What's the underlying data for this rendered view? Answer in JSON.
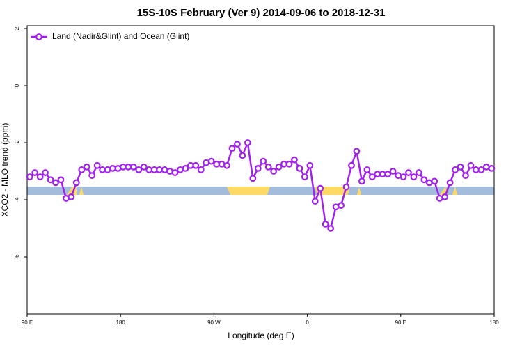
{
  "chart_data": {
    "type": "line",
    "title": "15S-10S February (Ver 9)   2014-09-06 to 2018-12-31",
    "x_label": "Longitude (deg E)",
    "y_label": "XCO2 - MLO trend (ppm)",
    "xlim": [
      90,
      540
    ],
    "xticks": [
      {
        "value": 90,
        "label": "90 E"
      },
      180,
      {
        "value": 270,
        "label": "90 W"
      },
      {
        "value": 360,
        "label": "0"
      },
      {
        "value": 450,
        "label": "90 E"
      },
      {
        "value": 540,
        "label": "180"
      }
    ],
    "ylim": [
      -8,
      2
    ],
    "yticks": [
      -6,
      -4,
      -2,
      0,
      2
    ],
    "legend": "upper left",
    "x": [
      92.5,
      97.5,
      102.5,
      107.5,
      112.5,
      117.5,
      122.5,
      127.5,
      132.5,
      137.5,
      142.5,
      147.5,
      152.5,
      157.5,
      162.5,
      167.5,
      172.5,
      177.5,
      182.5,
      187.5,
      192.5,
      197.5,
      202.5,
      207.5,
      212.5,
      217.5,
      222.5,
      227.5,
      232.5,
      237.5,
      242.5,
      247.5,
      252.5,
      257.5,
      262.5,
      267.5,
      272.5,
      277.5,
      282.5,
      287.5,
      292.5,
      297.5,
      302.5,
      307.5,
      312.5,
      317.5,
      322.5,
      327.5,
      332.5,
      337.5,
      342.5,
      347.5,
      352.5,
      357.5,
      362.5,
      367.5,
      372.5,
      377.5,
      382.5,
      387.5,
      392.5,
      397.5,
      402.5,
      407.5,
      412.5,
      417.5,
      422.5,
      427.5,
      432.5,
      437.5,
      442.5,
      447.5,
      452.5,
      457.5,
      462.5,
      467.5,
      472.5,
      477.5,
      482.5,
      487.5,
      492.5,
      497.5,
      502.5,
      507.5,
      512.5,
      517.5,
      522.5,
      527.5,
      532.5,
      537.5
    ],
    "series": [
      {
        "name": "Land (Nadir&Glint) and Ocean (Glint)",
        "color": "#a020f0",
        "values": [
          -3.2,
          -3.05,
          -3.2,
          -3.05,
          -3.3,
          -3.4,
          -3.3,
          -3.95,
          -3.9,
          -3.4,
          -2.95,
          -2.85,
          -3.15,
          -2.8,
          -2.95,
          -2.95,
          -2.9,
          -2.9,
          -2.85,
          -2.85,
          -2.85,
          -2.95,
          -2.85,
          -2.95,
          -2.95,
          -2.95,
          -2.95,
          -3.0,
          -3.05,
          -2.95,
          -2.9,
          -2.8,
          -2.8,
          -2.95,
          -2.7,
          -2.65,
          -2.75,
          -2.75,
          -2.8,
          -2.2,
          -2.05,
          -2.45,
          -2.0,
          -3.25,
          -2.9,
          -2.65,
          -2.85,
          -3.0,
          -2.85,
          -2.75,
          -2.75,
          -2.6,
          -2.9,
          -3.2,
          -2.8,
          -4.05,
          -3.6,
          -4.85,
          -5.0,
          -4.25,
          -4.2,
          -3.55,
          -2.8,
          -2.3,
          -3.35,
          -2.95,
          -3.2,
          -3.1,
          -3.1,
          -3.1,
          -3.0,
          -3.15,
          -3.2,
          -3.05,
          -3.2,
          -3.05,
          -3.3,
          -3.4,
          -3.35,
          -3.95,
          -3.9,
          -3.4,
          -2.95,
          -2.85,
          -3.15,
          -2.8,
          -2.95,
          -2.95,
          -2.85,
          -2.9
        ]
      }
    ]
  }
}
